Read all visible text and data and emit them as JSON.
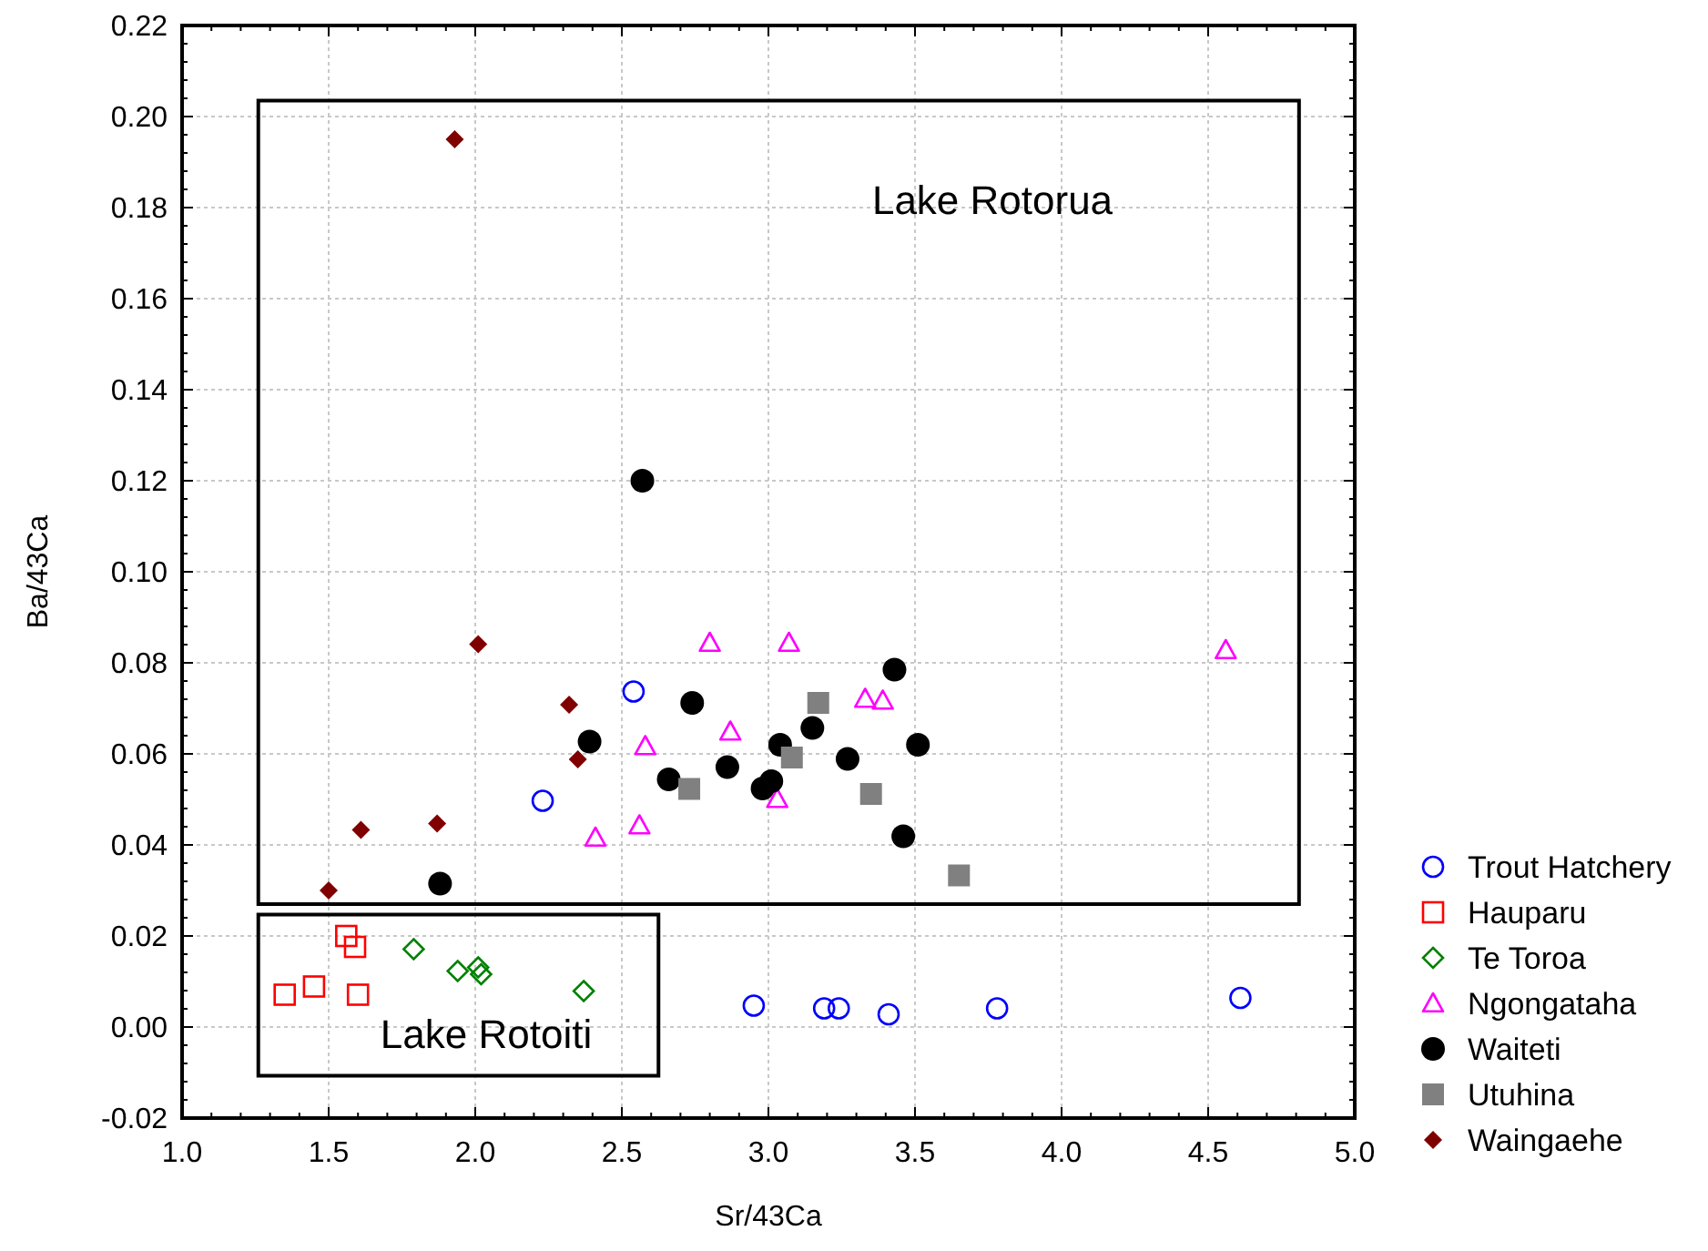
{
  "chart_data": {
    "type": "scatter",
    "xlabel": "Sr/43Ca",
    "ylabel": "Ba/43Ca",
    "xlim": [
      1.0,
      5.0
    ],
    "ylim": [
      -0.02,
      0.22
    ],
    "xticks": [
      {
        "value": 1.0,
        "label": "1.0"
      },
      {
        "value": 1.5,
        "label": "1.5"
      },
      {
        "value": 2.0,
        "label": "2.0"
      },
      {
        "value": 2.5,
        "label": "2.5"
      },
      {
        "value": 3.0,
        "label": "3.0"
      },
      {
        "value": 3.5,
        "label": "3.5"
      },
      {
        "value": 4.0,
        "label": "4.0"
      },
      {
        "value": 4.5,
        "label": "4.5"
      },
      {
        "value": 5.0,
        "label": "5.0"
      }
    ],
    "yticks": [
      {
        "value": -0.02,
        "label": "-0.02"
      },
      {
        "value": 0.0,
        "label": "0.00"
      },
      {
        "value": 0.02,
        "label": "0.02"
      },
      {
        "value": 0.04,
        "label": "0.04"
      },
      {
        "value": 0.06,
        "label": "0.06"
      },
      {
        "value": 0.08,
        "label": "0.08"
      },
      {
        "value": 0.1,
        "label": "0.10"
      },
      {
        "value": 0.12,
        "label": "0.12"
      },
      {
        "value": 0.14,
        "label": "0.14"
      },
      {
        "value": 0.16,
        "label": "0.16"
      },
      {
        "value": 0.18,
        "label": "0.18"
      },
      {
        "value": 0.2,
        "label": "0.20"
      },
      {
        "value": 0.22,
        "label": "0.22"
      }
    ],
    "grid": true,
    "legend": "right",
    "annotations": [
      "Lake Rotorua",
      "Lake Rotoiti"
    ],
    "series": [
      {
        "name": "Trout Hatchery",
        "color": "#0000ff",
        "marker": "circle",
        "x": [
          2.54,
          2.23,
          2.95,
          3.19,
          3.24,
          3.41,
          3.78,
          4.61
        ],
        "values": [
          0.0737,
          0.0497,
          0.0047,
          0.0041,
          0.0041,
          0.0028,
          0.0041,
          0.0064
        ]
      },
      {
        "name": "Hauparu",
        "color": "#ff0000",
        "marker": "square",
        "x": [
          1.35,
          1.45,
          1.56,
          1.59,
          1.6
        ],
        "values": [
          0.0071,
          0.0089,
          0.02,
          0.0176,
          0.0071
        ]
      },
      {
        "name": "Te Toroa",
        "color": "#008000",
        "marker": "diamond",
        "x": [
          1.79,
          1.94,
          2.01,
          2.02,
          2.37
        ],
        "values": [
          0.0171,
          0.0123,
          0.0131,
          0.0116,
          0.0079
        ]
      },
      {
        "name": "Ngongataha",
        "color": "#ff00ff",
        "marker": "triangle",
        "x": [
          2.8,
          3.07,
          2.87,
          2.58,
          3.33,
          3.39,
          3.03,
          2.56,
          2.41,
          4.56
        ],
        "values": [
          0.0844,
          0.0844,
          0.0649,
          0.0617,
          0.0721,
          0.0717,
          0.0501,
          0.0443,
          0.0416,
          0.0828
        ]
      },
      {
        "name": "Waiteti",
        "color": "#000000",
        "marker": "circle",
        "x": [
          1.88,
          2.39,
          2.74,
          2.66,
          2.86,
          3.04,
          3.15,
          3.27,
          3.51,
          3.43,
          3.46,
          2.98,
          3.01,
          2.57
        ],
        "values": [
          0.0315,
          0.0627,
          0.0712,
          0.0544,
          0.0571,
          0.062,
          0.0657,
          0.0589,
          0.062,
          0.0785,
          0.0419,
          0.0524,
          0.054,
          0.12
        ]
      },
      {
        "name": "Utuhina",
        "color": "#808080",
        "marker": "square",
        "x": [
          2.73,
          3.17,
          3.08,
          3.35,
          3.65
        ],
        "values": [
          0.0523,
          0.0712,
          0.0592,
          0.0512,
          0.0333
        ]
      },
      {
        "name": "Waingaehe",
        "color": "#800000",
        "marker": "diamond",
        "x": [
          1.93,
          2.01,
          2.32,
          2.35,
          1.61,
          1.87,
          1.5
        ],
        "values": [
          0.195,
          0.0841,
          0.0708,
          0.0588,
          0.0433,
          0.0447,
          0.03
        ]
      }
    ]
  }
}
